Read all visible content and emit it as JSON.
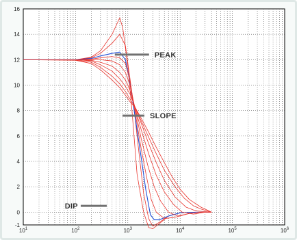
{
  "chart_data": {
    "type": "line",
    "x_scale": "log",
    "xlim": [
      10,
      1000000
    ],
    "ylim": [
      -1,
      16
    ],
    "grid": true,
    "grid_style": "dotted",
    "x_ticks": [
      {
        "value": 10,
        "base": "10",
        "exp": "1"
      },
      {
        "value": 100,
        "base": "10",
        "exp": "2"
      },
      {
        "value": 1000,
        "base": "10",
        "exp": "3"
      },
      {
        "value": 10000,
        "base": "10",
        "exp": "4"
      },
      {
        "value": 100000,
        "base": "10",
        "exp": "5"
      }
    ],
    "y_ticks": [
      "-1",
      "0",
      "2",
      "4",
      "6",
      "8",
      "10",
      "12",
      "14",
      "16"
    ],
    "annotations": [
      {
        "label": "PEAK",
        "x": 500,
        "y": 12.4
      },
      {
        "label": "SLOPE",
        "x": 700,
        "y": 7.6
      },
      {
        "label": "DIP",
        "x": 350,
        "y": 0.5
      }
    ],
    "colors": {
      "red_series": "#e8342c",
      "blue_series": "#1f4fd8",
      "grid": "#555555",
      "annotation_line": "#707070"
    },
    "series": [
      {
        "color": "red",
        "x": [
          10,
          100,
          200,
          300,
          500,
          700,
          800,
          1000,
          1200,
          1500,
          2000,
          2500,
          3000,
          4000,
          6000,
          10000,
          20000,
          30000,
          40000
        ],
        "y": [
          12,
          12,
          12.2,
          12.7,
          14.0,
          15.3,
          14.5,
          11.5,
          8.0,
          3.0,
          0.0,
          -1.2,
          -1.3,
          -0.9,
          -0.3,
          -0.05,
          0,
          0,
          0
        ]
      },
      {
        "color": "red",
        "x": [
          10,
          100,
          200,
          300,
          500,
          700,
          900,
          1100,
          1300,
          1600,
          2000,
          2500,
          3000,
          4000,
          6000,
          10000,
          20000,
          30000,
          40000
        ],
        "y": [
          12,
          12,
          12.15,
          12.5,
          13.3,
          14.0,
          13.1,
          10.5,
          8.3,
          5.0,
          1.5,
          -0.5,
          -1.1,
          -0.8,
          -0.3,
          -0.05,
          0,
          0,
          0
        ]
      },
      {
        "color": "blue",
        "x": [
          10,
          100,
          200,
          300,
          500,
          700,
          900,
          1100,
          1400,
          1800,
          2200,
          2700,
          3200,
          4000,
          6000,
          10000,
          20000,
          30000,
          40000
        ],
        "y": [
          12,
          12,
          12.1,
          12.3,
          12.5,
          12.6,
          12.0,
          10.2,
          7.3,
          4.3,
          1.8,
          -0.2,
          -0.6,
          -0.6,
          -0.3,
          -0.05,
          0,
          0,
          0
        ]
      },
      {
        "color": "red",
        "x": [
          10,
          100,
          200,
          300,
          500,
          700,
          900,
          1100,
          1400,
          1800,
          2300,
          2800,
          3500,
          5000,
          8000,
          15000,
          25000,
          40000
        ],
        "y": [
          12,
          12,
          12.05,
          12.15,
          12.25,
          12.15,
          11.7,
          10.3,
          7.7,
          5.0,
          2.7,
          1.0,
          0.0,
          -0.5,
          -0.4,
          -0.1,
          0,
          0
        ]
      },
      {
        "color": "red",
        "x": [
          10,
          100,
          200,
          300,
          500,
          700,
          900,
          1100,
          1400,
          1800,
          2400,
          3200,
          4200,
          6000,
          9000,
          15000,
          25000,
          40000
        ],
        "y": [
          12,
          12,
          12.0,
          12.0,
          11.9,
          11.6,
          11.0,
          10.0,
          8.0,
          5.8,
          3.7,
          2.0,
          0.9,
          0.0,
          -0.3,
          -0.1,
          0,
          0
        ]
      },
      {
        "color": "red",
        "x": [
          10,
          100,
          200,
          300,
          500,
          700,
          900,
          1100,
          1400,
          1800,
          2500,
          3500,
          5000,
          7500,
          11000,
          18000,
          30000,
          40000
        ],
        "y": [
          12,
          12,
          11.95,
          11.8,
          11.5,
          11.0,
          10.4,
          9.6,
          8.1,
          6.5,
          4.6,
          2.9,
          1.6,
          0.6,
          0.0,
          -0.15,
          0,
          0
        ]
      },
      {
        "color": "red",
        "x": [
          10,
          100,
          200,
          300,
          500,
          700,
          900,
          1100,
          1400,
          1800,
          2500,
          3500,
          5000,
          8000,
          13000,
          20000,
          30000,
          40000
        ],
        "y": [
          12,
          12,
          11.9,
          11.6,
          11.1,
          10.5,
          9.9,
          9.3,
          8.2,
          7.0,
          5.4,
          3.9,
          2.5,
          1.2,
          0.4,
          0.1,
          0.05,
          0
        ]
      },
      {
        "color": "red",
        "x": [
          10,
          100,
          200,
          300,
          500,
          700,
          900,
          1100,
          1400,
          1800,
          2500,
          3500,
          5000,
          8000,
          12000,
          18000,
          25000,
          40000
        ],
        "y": [
          12,
          11.98,
          11.8,
          11.4,
          10.7,
          10.1,
          9.5,
          8.9,
          8.2,
          7.2,
          5.9,
          4.6,
          3.3,
          2.0,
          1.1,
          0.5,
          0.25,
          0
        ]
      },
      {
        "color": "red",
        "x": [
          10,
          100,
          200,
          300,
          500,
          700,
          900,
          1100,
          1400,
          1800,
          2500,
          3500,
          5000,
          7000,
          10000,
          15000,
          25000,
          40000
        ],
        "y": [
          12,
          11.95,
          11.7,
          11.2,
          10.4,
          9.8,
          9.2,
          8.7,
          8.2,
          7.4,
          6.3,
          5.1,
          3.9,
          2.8,
          1.8,
          1.0,
          0.4,
          0
        ]
      }
    ]
  }
}
